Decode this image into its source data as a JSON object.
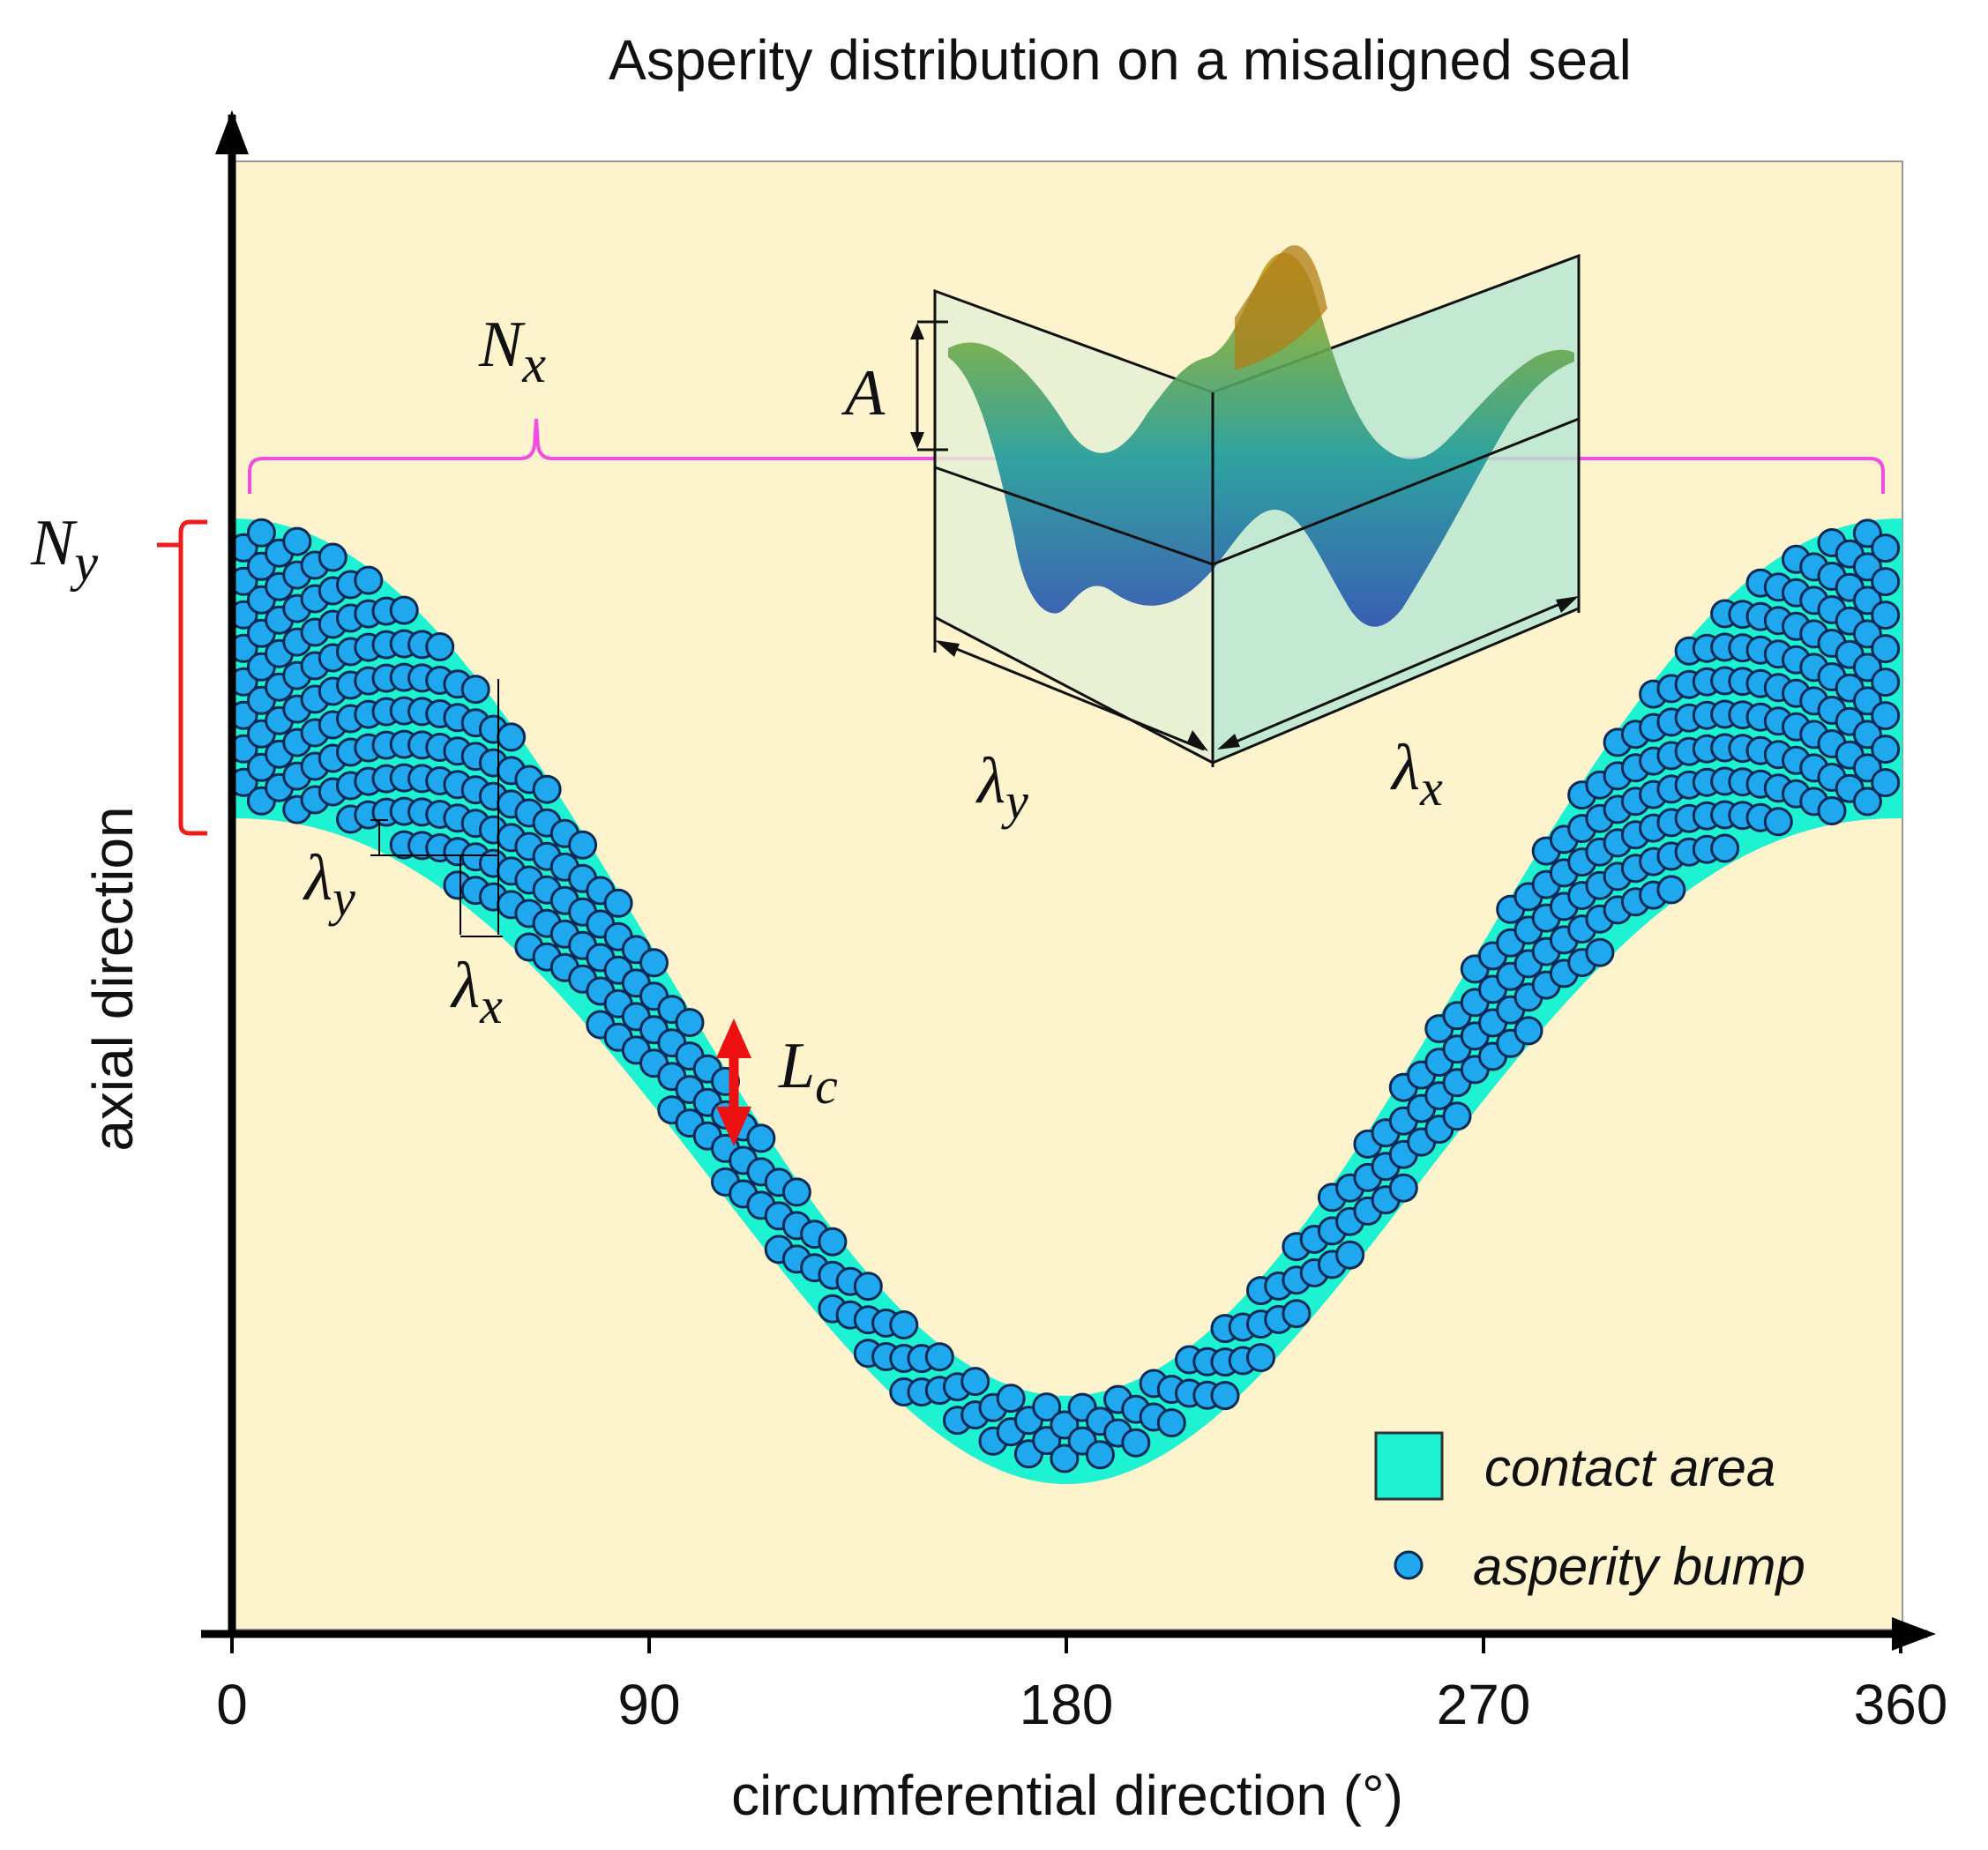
{
  "title": "Asperity distribution on a misaligned seal",
  "x_axis": {
    "label": "circumferential direction (°)",
    "ticks": [
      "0",
      "90",
      "180",
      "270",
      "360"
    ],
    "tick_values": [
      0,
      90,
      180,
      270,
      360
    ]
  },
  "y_axis": {
    "label": "axial direction"
  },
  "legend": {
    "contact_area": "contact area",
    "asperity_bump": "asperity bump"
  },
  "annotations": {
    "Nx": "N",
    "Nx_sub": "x",
    "Ny": "N",
    "Ny_sub": "y",
    "lambda_y": "λ",
    "lambda_y_sub": "y",
    "lambda_x": "λ",
    "lambda_x_sub": "x",
    "Lc": "L",
    "Lc_sub": "c",
    "A": "A",
    "inset_lambda_y": "λ",
    "inset_lambda_y_sub": "y",
    "inset_lambda_x": "λ",
    "inset_lambda_x_sub": "x"
  },
  "colors": {
    "plot_bg": "#fdf3cc",
    "contact": "#1df2d2",
    "bump_fill": "#20a8ee",
    "bump_edge": "#0a2a55",
    "brace_magenta": "#f24ce0",
    "brace_red": "#ef1c1c",
    "arrow_red": "#ee1111"
  },
  "chart_data": {
    "type": "scatter",
    "x_range": [
      0,
      360
    ],
    "band": {
      "description": "cosine-shaped contact band following seal misalignment",
      "lower_edge_fraction_of_depth": 1.0,
      "band_width_max_rows": 9,
      "band_width_min_rows": 3
    },
    "series": [
      {
        "name": "contact area",
        "kind": "filled band"
      },
      {
        "name": "asperity bump",
        "kind": "circle markers"
      }
    ]
  }
}
